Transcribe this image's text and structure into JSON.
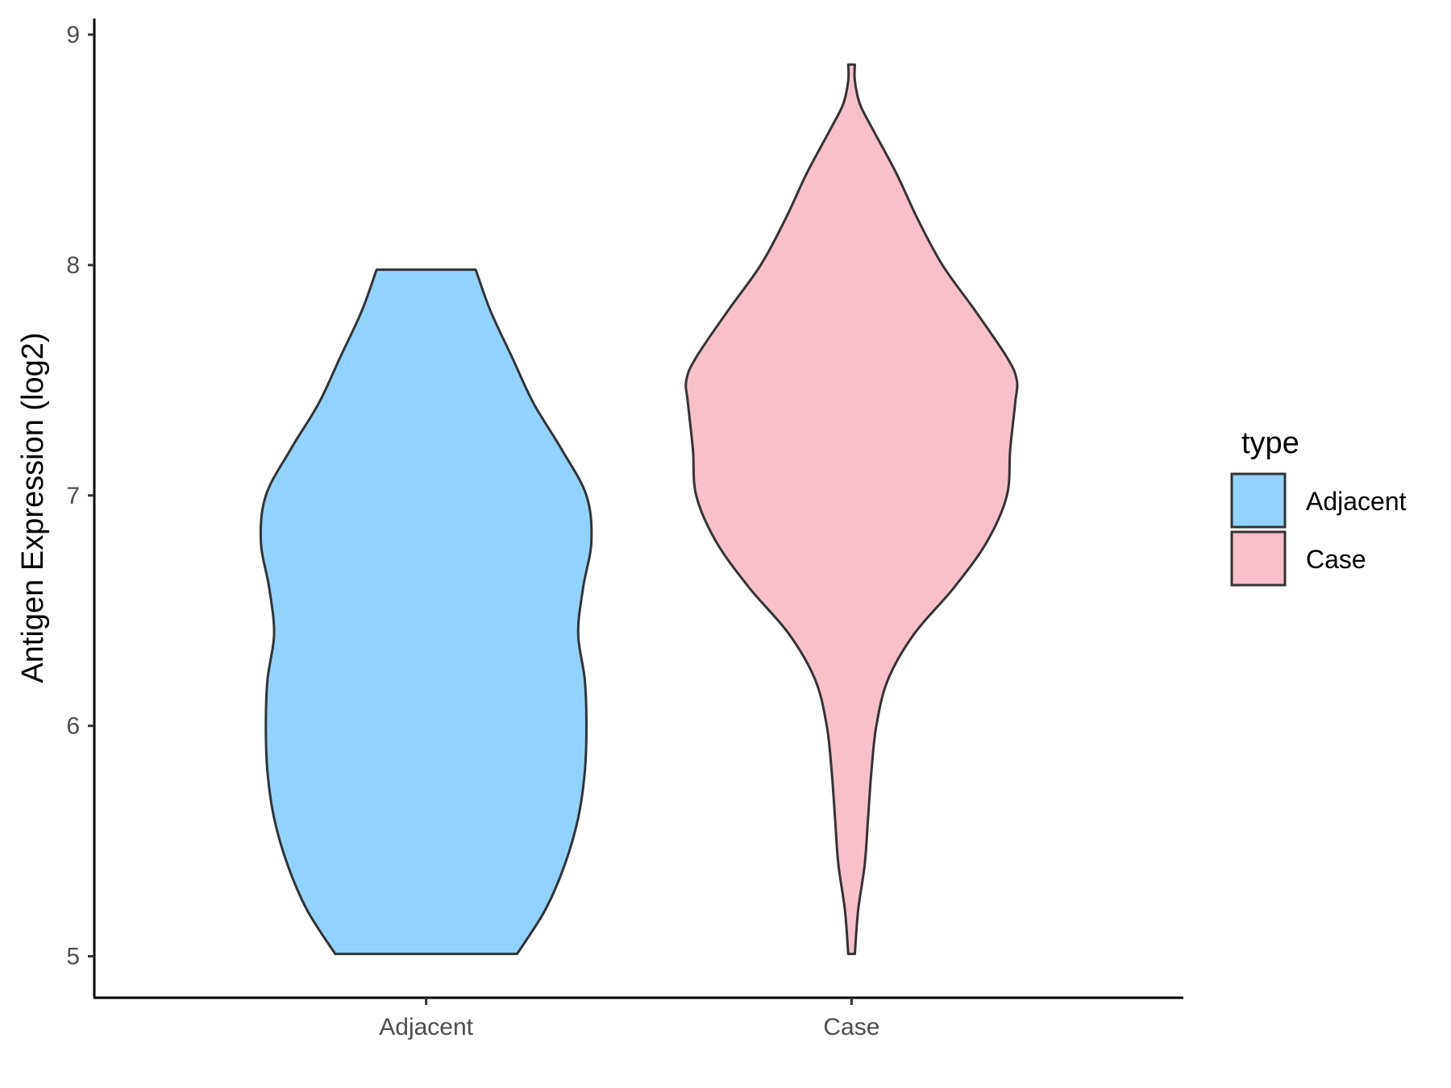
{
  "chart_data": {
    "type": "violin",
    "title": "",
    "xlabel": "",
    "ylabel": "Antigen Expression (log2)",
    "ylim": [
      4.82,
      9.07
    ],
    "yticks": [
      5,
      6,
      7,
      8,
      9
    ],
    "categories": [
      "Adjacent",
      "Case"
    ],
    "grid": false,
    "legend": {
      "title": "type",
      "placement": "right",
      "entries": [
        {
          "label": "Adjacent",
          "color": "#91D3FE"
        },
        {
          "label": "Case",
          "color": "#F8C0CB"
        }
      ]
    },
    "series": [
      {
        "category": "Adjacent",
        "color": "#91D3FE",
        "min": 5.01,
        "max": 7.98,
        "density": [
          [
            5.01,
            0.55
          ],
          [
            5.2,
            0.72
          ],
          [
            5.4,
            0.84
          ],
          [
            5.6,
            0.92
          ],
          [
            5.8,
            0.96
          ],
          [
            6.0,
            0.97
          ],
          [
            6.2,
            0.96
          ],
          [
            6.4,
            0.92
          ],
          [
            6.6,
            0.95
          ],
          [
            6.8,
            1.0
          ],
          [
            7.0,
            0.97
          ],
          [
            7.2,
            0.82
          ],
          [
            7.4,
            0.65
          ],
          [
            7.6,
            0.52
          ],
          [
            7.8,
            0.39
          ],
          [
            7.98,
            0.3
          ]
        ]
      },
      {
        "category": "Case",
        "color": "#F8C0CB",
        "min": 5.01,
        "max": 8.87,
        "density": [
          [
            5.01,
            0.02
          ],
          [
            5.2,
            0.04
          ],
          [
            5.4,
            0.08
          ],
          [
            5.6,
            0.1
          ],
          [
            5.8,
            0.12
          ],
          [
            6.0,
            0.15
          ],
          [
            6.2,
            0.22
          ],
          [
            6.4,
            0.38
          ],
          [
            6.6,
            0.62
          ],
          [
            6.8,
            0.82
          ],
          [
            7.0,
            0.94
          ],
          [
            7.2,
            0.96
          ],
          [
            7.4,
            0.99
          ],
          [
            7.5,
            1.0
          ],
          [
            7.6,
            0.94
          ],
          [
            7.8,
            0.75
          ],
          [
            8.0,
            0.55
          ],
          [
            8.2,
            0.4
          ],
          [
            8.4,
            0.27
          ],
          [
            8.6,
            0.12
          ],
          [
            8.7,
            0.05
          ],
          [
            8.8,
            0.02
          ],
          [
            8.87,
            0.02
          ]
        ]
      }
    ]
  }
}
